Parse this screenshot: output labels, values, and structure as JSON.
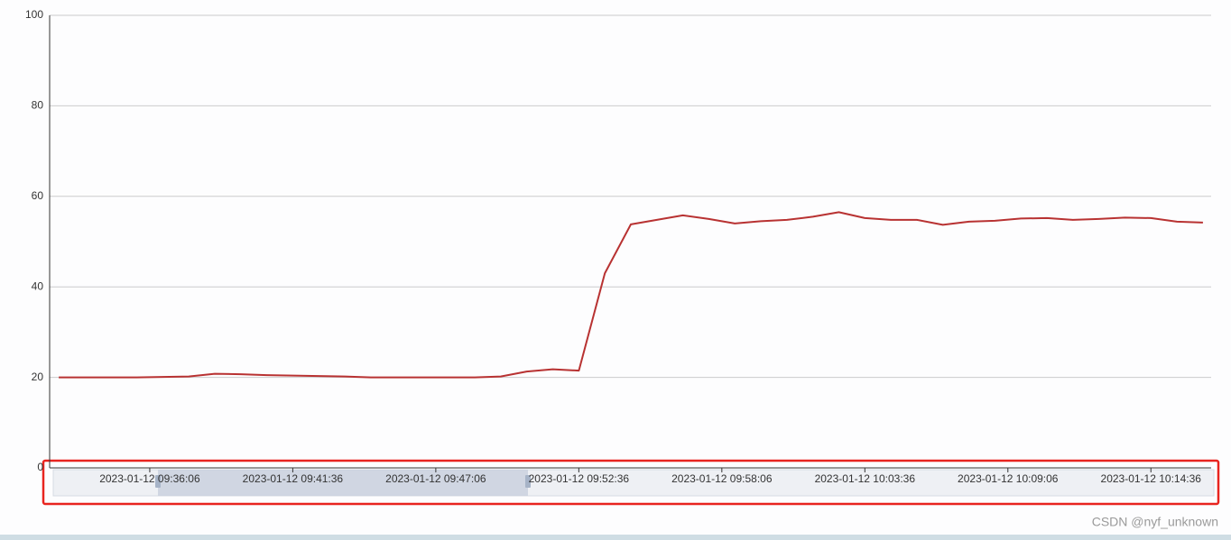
{
  "chart_data": {
    "type": "line",
    "x": [
      "2023-01-12 09:32:36",
      "2023-01-12 09:33:36",
      "2023-01-12 09:34:36",
      "2023-01-12 09:35:36",
      "2023-01-12 09:36:36",
      "2023-01-12 09:37:36",
      "2023-01-12 09:38:36",
      "2023-01-12 09:39:36",
      "2023-01-12 09:40:36",
      "2023-01-12 09:41:36",
      "2023-01-12 09:42:36",
      "2023-01-12 09:43:36",
      "2023-01-12 09:44:36",
      "2023-01-12 09:45:36",
      "2023-01-12 09:46:36",
      "2023-01-12 09:47:36",
      "2023-01-12 09:48:36",
      "2023-01-12 09:49:36",
      "2023-01-12 09:50:36",
      "2023-01-12 09:51:36",
      "2023-01-12 09:52:36",
      "2023-01-12 09:53:36",
      "2023-01-12 09:54:36",
      "2023-01-12 09:55:36",
      "2023-01-12 09:56:36",
      "2023-01-12 09:57:36",
      "2023-01-12 09:58:36",
      "2023-01-12 09:59:36",
      "2023-01-12 10:00:36",
      "2023-01-12 10:01:36",
      "2023-01-12 10:02:36",
      "2023-01-12 10:03:36",
      "2023-01-12 10:04:36",
      "2023-01-12 10:05:36",
      "2023-01-12 10:06:36",
      "2023-01-12 10:07:36",
      "2023-01-12 10:08:36",
      "2023-01-12 10:09:36",
      "2023-01-12 10:10:36",
      "2023-01-12 10:11:36",
      "2023-01-12 10:12:36",
      "2023-01-12 10:13:36",
      "2023-01-12 10:14:36",
      "2023-01-12 10:15:36",
      "2023-01-12 10:16:36"
    ],
    "values": [
      20,
      20,
      20,
      20,
      20.1,
      20.2,
      20.8,
      20.7,
      20.5,
      20.4,
      20.3,
      20.2,
      20,
      20,
      20,
      20,
      20,
      20.2,
      21.3,
      21.8,
      21.5,
      43,
      53.8,
      54.8,
      55.8,
      55,
      54,
      54.5,
      54.8,
      55.5,
      56.5,
      55.2,
      54.8,
      54.8,
      53.7,
      54.4,
      54.6,
      55.1,
      55.2,
      54.8,
      55,
      55.3,
      55.2,
      54.4,
      54.2
    ],
    "color": "#b83232",
    "xlim": [
      "2023-01-12 09:32:15",
      "2023-01-12 10:16:55"
    ],
    "xticks": [
      "2023-01-12 09:36:06",
      "2023-01-12 09:41:36",
      "2023-01-12 09:47:06",
      "2023-01-12 09:52:36",
      "2023-01-12 09:58:06",
      "2023-01-12 10:03:36",
      "2023-01-12 10:09:06",
      "2023-01-12 10:14:36"
    ],
    "ylim": [
      0,
      100
    ],
    "yticks": [
      0,
      20,
      40,
      60,
      80,
      100
    ],
    "grid": true
  },
  "watermark": "CSDN @nyf_unknown"
}
